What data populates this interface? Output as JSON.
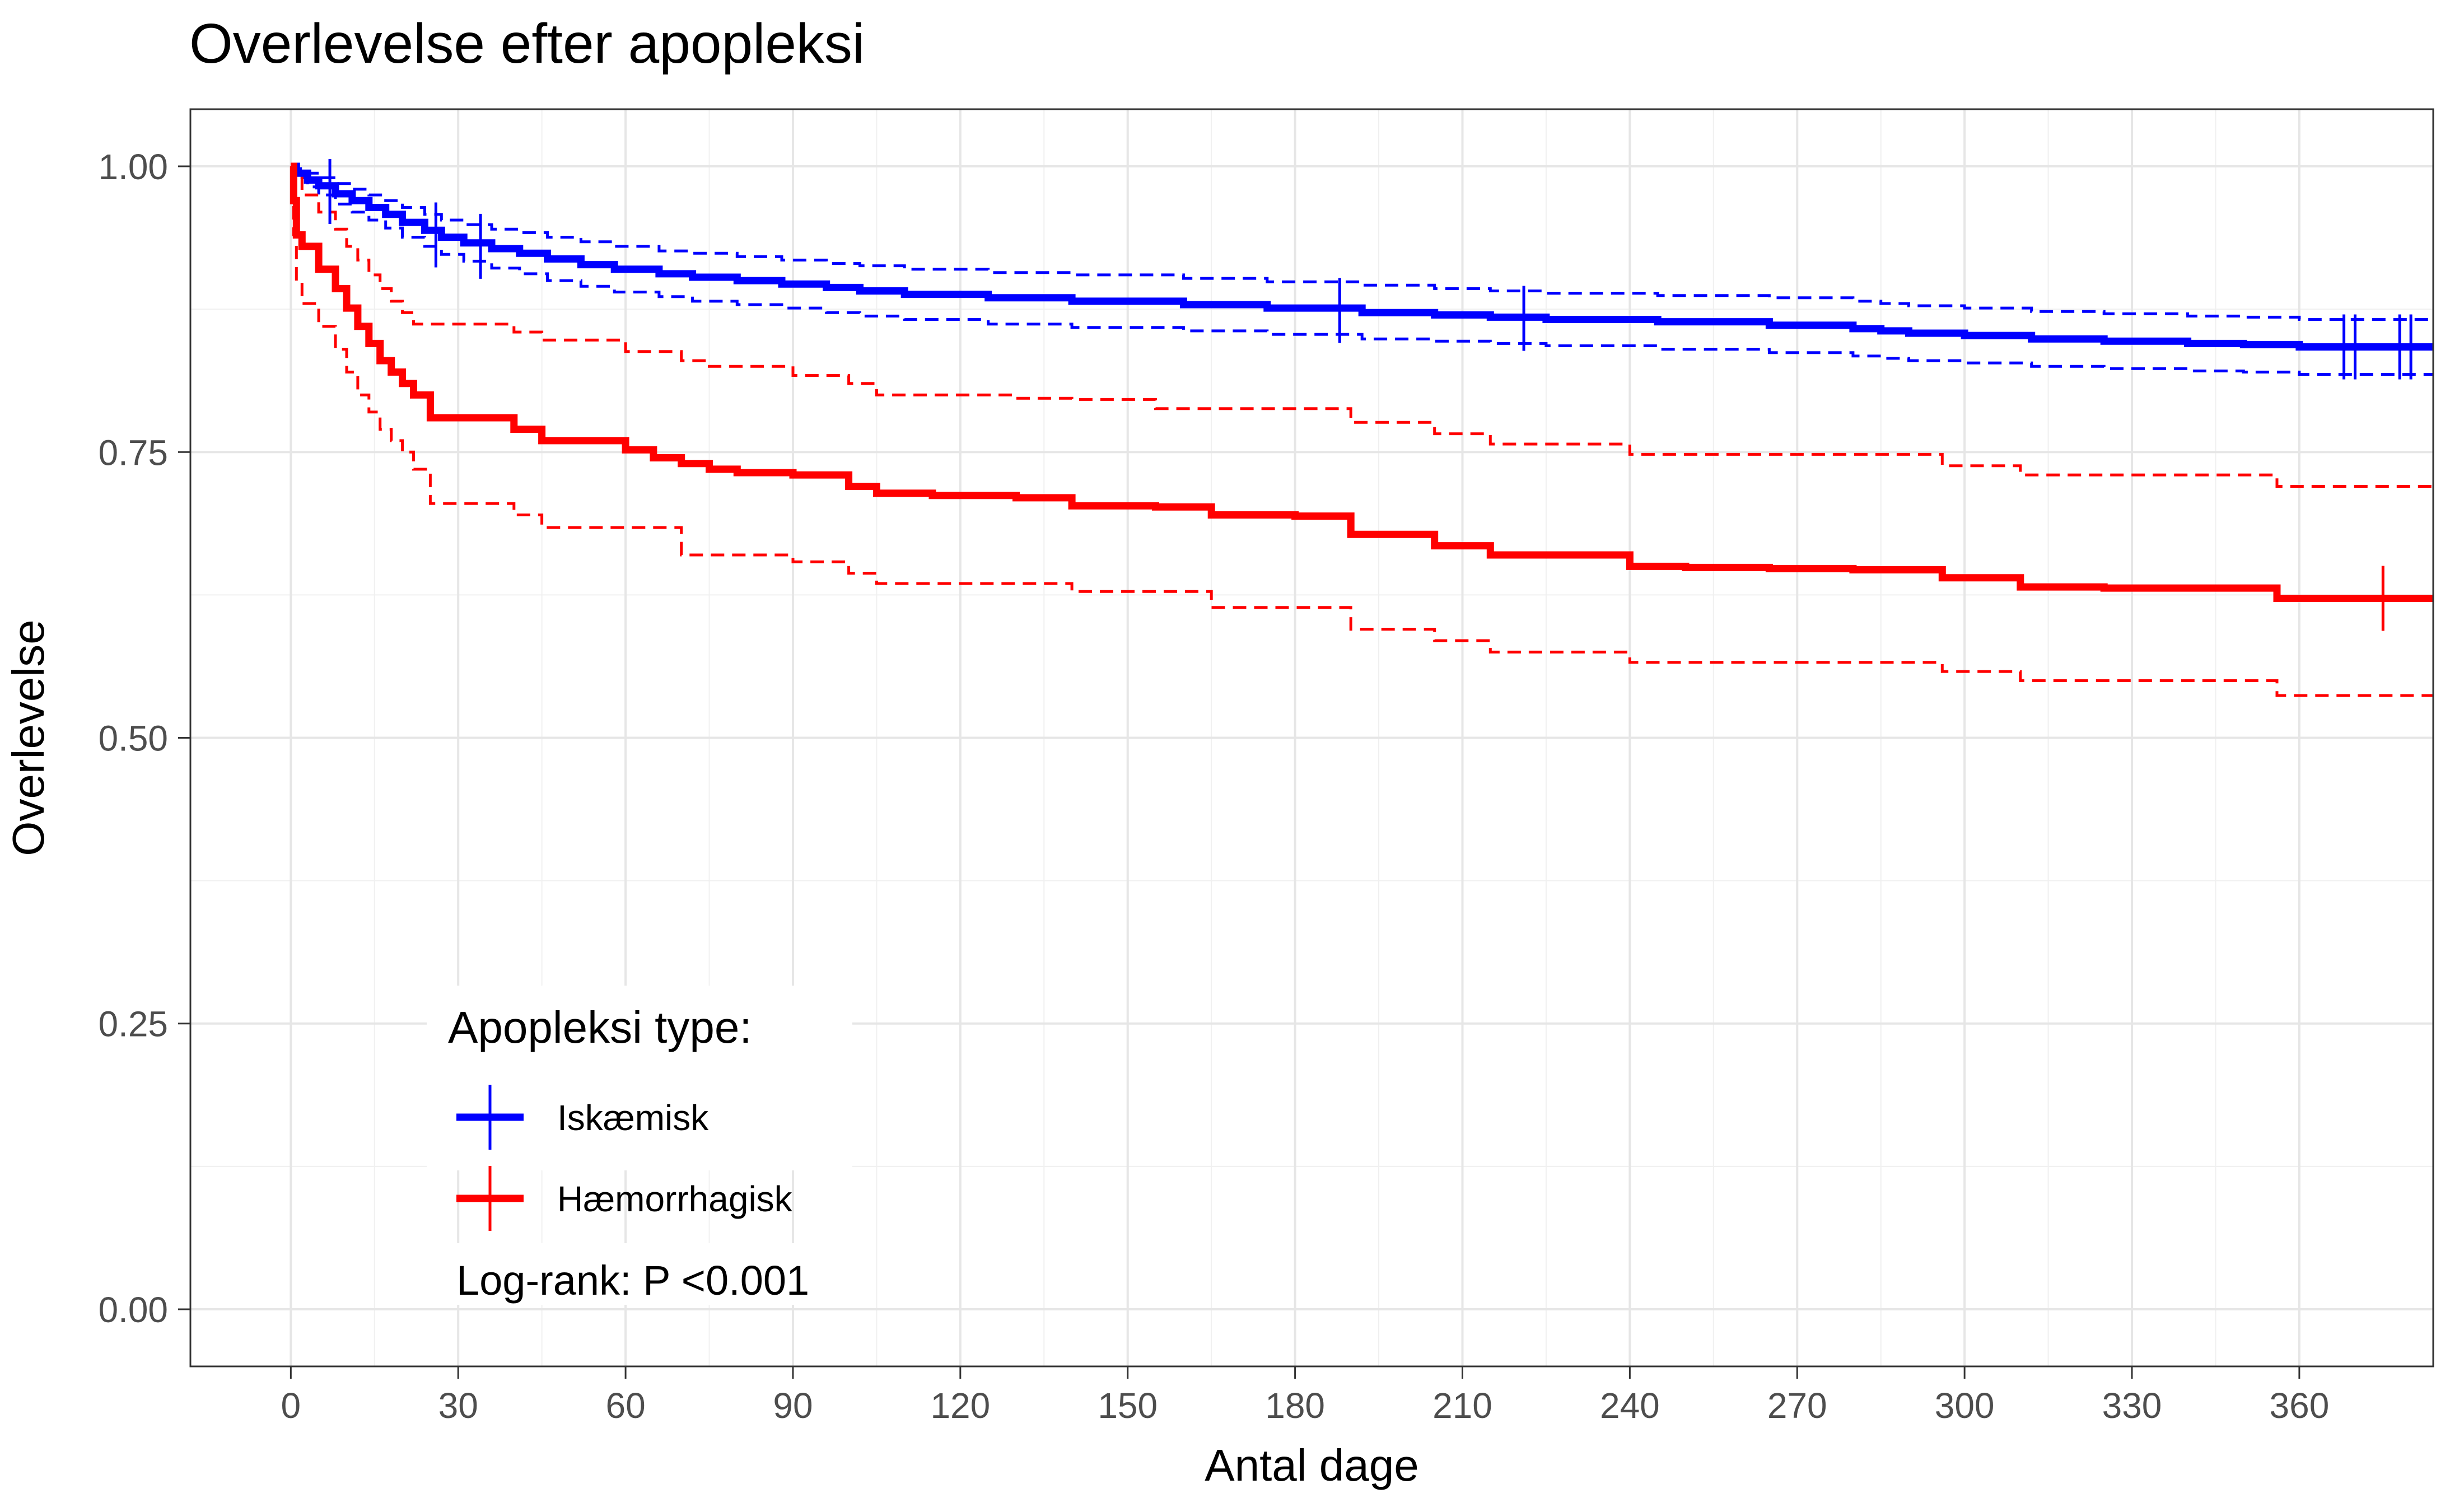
{
  "chart_data": {
    "type": "line",
    "title": "Overlevelse efter apopleksi",
    "xlabel": "Antal dage",
    "ylabel": "Overlevelse",
    "xlim": [
      -18,
      384
    ],
    "ylim": [
      -0.05,
      1.05
    ],
    "x_ticks": [
      0,
      30,
      60,
      90,
      120,
      150,
      180,
      210,
      240,
      270,
      300,
      330,
      360
    ],
    "x_tick_labels": [
      "0",
      "30",
      "60",
      "90",
      "120",
      "150",
      "180",
      "210",
      "240",
      "270",
      "300",
      "330",
      "360"
    ],
    "y_ticks": [
      0,
      0.25,
      0.5,
      0.75,
      1
    ],
    "y_tick_labels": [
      "0.00",
      "0.25",
      "0.50",
      "0.75",
      "1.00"
    ],
    "grid": true,
    "legend": {
      "title": "Apopleksi type:",
      "position": "bottom-left",
      "entries": [
        "Iskæmisk",
        "Hæmorrhagisk"
      ]
    },
    "annotation": "Log-rank: P <0.001",
    "series": [
      {
        "name": "Iskæmisk",
        "color": "#0000ff",
        "x": [
          0,
          1,
          3,
          5,
          8,
          11,
          14,
          17,
          20,
          24,
          27,
          31,
          36,
          41,
          46,
          52,
          58,
          66,
          72,
          80,
          88,
          96,
          102,
          110,
          125,
          140,
          160,
          175,
          192,
          205,
          215,
          225,
          245,
          265,
          280,
          285,
          290,
          300,
          312,
          325,
          340,
          350,
          360,
          384
        ],
        "y": [
          1.0,
          0.994,
          0.988,
          0.983,
          0.976,
          0.97,
          0.964,
          0.958,
          0.951,
          0.944,
          0.938,
          0.933,
          0.928,
          0.924,
          0.919,
          0.914,
          0.91,
          0.906,
          0.903,
          0.9,
          0.897,
          0.894,
          0.891,
          0.888,
          0.885,
          0.882,
          0.879,
          0.876,
          0.872,
          0.87,
          0.868,
          0.866,
          0.864,
          0.861,
          0.858,
          0.856,
          0.854,
          0.852,
          0.849,
          0.847,
          0.845,
          0.844,
          0.842,
          0.842
        ],
        "ci_lower": [
          1.0,
          0.99,
          0.982,
          0.975,
          0.967,
          0.96,
          0.953,
          0.946,
          0.938,
          0.93,
          0.923,
          0.917,
          0.911,
          0.906,
          0.9,
          0.895,
          0.89,
          0.886,
          0.882,
          0.879,
          0.876,
          0.872,
          0.869,
          0.866,
          0.862,
          0.859,
          0.856,
          0.853,
          0.849,
          0.847,
          0.845,
          0.843,
          0.84,
          0.837,
          0.834,
          0.832,
          0.83,
          0.828,
          0.825,
          0.823,
          0.821,
          0.82,
          0.818,
          0.818
        ],
        "ci_upper": [
          1.0,
          0.998,
          0.994,
          0.99,
          0.985,
          0.98,
          0.975,
          0.97,
          0.964,
          0.958,
          0.953,
          0.949,
          0.945,
          0.942,
          0.938,
          0.934,
          0.93,
          0.926,
          0.924,
          0.921,
          0.918,
          0.915,
          0.913,
          0.91,
          0.907,
          0.905,
          0.902,
          0.899,
          0.896,
          0.893,
          0.891,
          0.889,
          0.887,
          0.885,
          0.882,
          0.88,
          0.878,
          0.876,
          0.873,
          0.871,
          0.869,
          0.868,
          0.866,
          0.866
        ],
        "censored": [
          {
            "x": 7,
            "y": 0.978
          },
          {
            "x": 26,
            "y": 0.94
          },
          {
            "x": 34,
            "y": 0.93
          },
          {
            "x": 188,
            "y": 0.874
          },
          {
            "x": 221,
            "y": 0.867
          },
          {
            "x": 368,
            "y": 0.842
          },
          {
            "x": 370,
            "y": 0.842
          },
          {
            "x": 378,
            "y": 0.842
          },
          {
            "x": 380,
            "y": 0.842
          }
        ]
      },
      {
        "name": "Hæmorrhagisk",
        "color": "#ff0000",
        "x": [
          0,
          0.5,
          1,
          2,
          5,
          8,
          10,
          12,
          14,
          16,
          18,
          20,
          22,
          25,
          40,
          45,
          60,
          65,
          70,
          75,
          80,
          90,
          100,
          105,
          115,
          130,
          140,
          155,
          165,
          180,
          190,
          205,
          215,
          240,
          250,
          265,
          280,
          296,
          310,
          325,
          356,
          384
        ],
        "y": [
          1.0,
          0.97,
          0.94,
          0.93,
          0.91,
          0.893,
          0.876,
          0.86,
          0.845,
          0.83,
          0.82,
          0.81,
          0.8,
          0.78,
          0.77,
          0.76,
          0.752,
          0.745,
          0.74,
          0.735,
          0.732,
          0.73,
          0.72,
          0.714,
          0.712,
          0.71,
          0.703,
          0.702,
          0.695,
          0.694,
          0.678,
          0.668,
          0.66,
          0.65,
          0.649,
          0.648,
          0.647,
          0.64,
          0.632,
          0.631,
          0.622,
          0.622
        ],
        "ci_lower": [
          1.0,
          0.94,
          0.9,
          0.88,
          0.86,
          0.84,
          0.82,
          0.8,
          0.785,
          0.77,
          0.76,
          0.75,
          0.735,
          0.705,
          0.695,
          0.684,
          0.684,
          0.684,
          0.66,
          0.66,
          0.66,
          0.654,
          0.644,
          0.635,
          0.635,
          0.635,
          0.628,
          0.628,
          0.614,
          0.614,
          0.595,
          0.585,
          0.575,
          0.566,
          0.566,
          0.566,
          0.566,
          0.558,
          0.55,
          0.55,
          0.537,
          0.537
        ],
        "ci_upper": [
          1.0,
          1.0,
          0.99,
          0.975,
          0.96,
          0.945,
          0.93,
          0.918,
          0.905,
          0.893,
          0.882,
          0.872,
          0.862,
          0.862,
          0.855,
          0.848,
          0.838,
          0.838,
          0.83,
          0.825,
          0.825,
          0.817,
          0.81,
          0.8,
          0.8,
          0.797,
          0.796,
          0.788,
          0.788,
          0.788,
          0.776,
          0.766,
          0.757,
          0.748,
          0.748,
          0.748,
          0.748,
          0.738,
          0.73,
          0.73,
          0.72,
          0.72
        ],
        "censored": [
          {
            "x": 375,
            "y": 0.622
          }
        ]
      }
    ]
  }
}
